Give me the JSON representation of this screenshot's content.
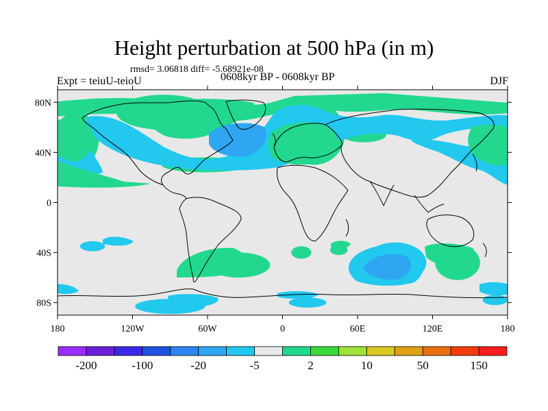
{
  "title": "Height perturbation at 500 hPa (in m)",
  "stats_line": "rmsd= 3.06818 diff= -5.68921e-08",
  "left_label": "Expt = teiuU-teioU",
  "center_label": "0608kyr BP - 0608kyr BP",
  "right_label": "DJF",
  "map": {
    "projection": "cylindrical-equidistant",
    "lon_range": [
      -180,
      180
    ],
    "lat_range": [
      -90,
      90
    ],
    "lon_ticks": [
      {
        "value": -180,
        "label": "180"
      },
      {
        "value": -120,
        "label": "120W"
      },
      {
        "value": -60,
        "label": "60W"
      },
      {
        "value": 0,
        "label": "0"
      },
      {
        "value": 60,
        "label": "60E"
      },
      {
        "value": 120,
        "label": "120E"
      },
      {
        "value": 180,
        "label": "180"
      }
    ],
    "lat_ticks": [
      {
        "value": 80,
        "label": "80N"
      },
      {
        "value": 40,
        "label": "40N"
      },
      {
        "value": 0,
        "label": "0"
      },
      {
        "value": -40,
        "label": "40S"
      },
      {
        "value": -80,
        "label": "80S"
      }
    ],
    "background_color": "#e8e8e8",
    "coastline_color": "#000000"
  },
  "colorbar": {
    "colors": [
      "#9a2bff",
      "#6b1fd8",
      "#3a28e6",
      "#1f52e0",
      "#2f86f0",
      "#2fa6f2",
      "#22c8ee",
      "#e9e9e9",
      "#22d88e",
      "#3cd83c",
      "#a0e23a",
      "#d8c820",
      "#e0a018",
      "#e87010",
      "#f03c0c",
      "#ff1e1e"
    ],
    "labels": [
      {
        "boundary": 1,
        "text": "-200"
      },
      {
        "boundary": 3,
        "text": "-100"
      },
      {
        "boundary": 5,
        "text": "-20"
      },
      {
        "boundary": 7,
        "text": "-5"
      },
      {
        "boundary": 9,
        "text": "2"
      },
      {
        "boundary": 11,
        "text": "10"
      },
      {
        "boundary": 13,
        "text": "50"
      },
      {
        "boundary": 15,
        "text": "150"
      }
    ]
  },
  "anomaly_features": [
    {
      "lon": -95,
      "lat": 72,
      "rx": 38,
      "ry": 14,
      "level": 1
    },
    {
      "lon": -85,
      "lat": 62,
      "rx": 18,
      "ry": 6,
      "level": 2
    },
    {
      "lon": -165,
      "lat": 50,
      "rx": 18,
      "ry": 22,
      "level": 1
    },
    {
      "lon": -175,
      "lat": 45,
      "rx": 6,
      "ry": 10,
      "level": 2
    },
    {
      "lon": 25,
      "lat": 55,
      "rx": 25,
      "ry": 25,
      "level": 1
    },
    {
      "lon": 30,
      "lat": 48,
      "rx": 10,
      "ry": 8,
      "level": 2
    },
    {
      "lon": 65,
      "lat": 54,
      "rx": 18,
      "ry": 6,
      "level": 1
    },
    {
      "lon": 172,
      "lat": 45,
      "rx": 18,
      "ry": 22,
      "level": 1
    },
    {
      "lon": 176,
      "lat": 45,
      "rx": 6,
      "ry": 10,
      "level": 2
    },
    {
      "lon": -62,
      "lat": 30,
      "rx": 35,
      "ry": 6,
      "level": 1
    },
    {
      "lon": -152,
      "lat": -35,
      "rx": 10,
      "ry": 4,
      "level": -1
    },
    {
      "lon": -35,
      "lat": -50,
      "rx": 25,
      "ry": 10,
      "level": 1
    },
    {
      "lon": 15,
      "lat": -40,
      "rx": 8,
      "ry": 5,
      "level": 1
    },
    {
      "lon": 90,
      "lat": -48,
      "rx": 25,
      "ry": 16,
      "level": -1
    },
    {
      "lon": 90,
      "lat": -50,
      "rx": 18,
      "ry": 10,
      "level": -2
    },
    {
      "lon": 140,
      "lat": -48,
      "rx": 18,
      "ry": 14,
      "level": 1
    },
    {
      "lon": 45,
      "lat": -38,
      "rx": 7,
      "ry": 4,
      "level": 1
    },
    {
      "lon": -90,
      "lat": -83,
      "rx": 28,
      "ry": 6,
      "level": -1
    },
    {
      "lon": 20,
      "lat": -80,
      "rx": 15,
      "ry": 4,
      "level": -1
    },
    {
      "lon": 170,
      "lat": -78,
      "rx": 10,
      "ry": 4,
      "level": -1
    }
  ]
}
